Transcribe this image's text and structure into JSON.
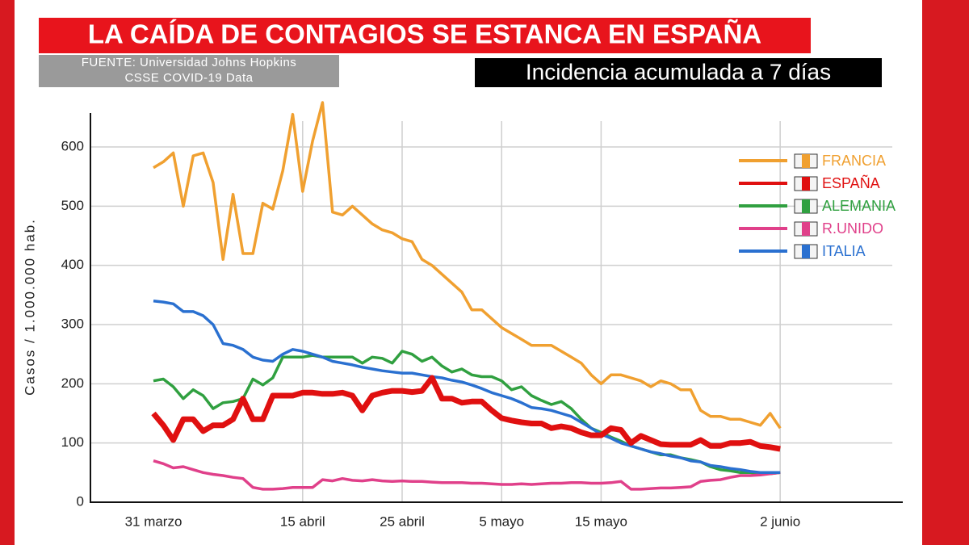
{
  "chart_data": {
    "type": "line",
    "title": "LA CAÍDA DE CONTAGIOS SE ESTANCA EN ESPAÑA",
    "source": [
      "FUENTE: Universidad Johns Hopkins",
      "CSSE COVID-19 Data"
    ],
    "subtitle": "Incidencia acumulada a 7 días",
    "ylabel": "Casos / 1.000.000 hab.",
    "categories": [
      "31 marzo",
      null,
      null,
      null,
      null,
      null,
      null,
      null,
      null,
      null,
      null,
      null,
      null,
      null,
      null,
      "15 abril",
      null,
      null,
      null,
      null,
      null,
      null,
      null,
      null,
      null,
      "25 abril",
      null,
      null,
      null,
      null,
      null,
      null,
      null,
      null,
      null,
      "5 mayo",
      null,
      null,
      null,
      null,
      null,
      null,
      null,
      null,
      null,
      "15 mayo",
      null,
      null,
      null,
      null,
      null,
      null,
      null,
      null,
      null,
      null,
      null,
      null,
      null,
      null,
      null,
      null,
      null,
      "2 junio"
    ],
    "series": [
      {
        "name": "FRANCIA",
        "color": "#f0a030",
        "values": [
          565,
          575,
          590,
          500,
          585,
          590,
          540,
          410,
          520,
          420,
          420,
          505,
          495,
          560,
          655,
          525,
          610,
          675,
          490,
          485,
          500,
          485,
          470,
          460,
          455,
          445,
          440,
          410,
          400,
          385,
          370,
          355,
          325,
          325,
          310,
          295,
          285,
          275,
          265,
          265,
          265,
          255,
          245,
          235,
          215,
          200,
          215,
          215,
          210,
          205,
          195,
          205,
          200,
          190,
          190,
          155,
          145,
          145,
          140,
          140,
          135,
          130,
          150,
          125
        ]
      },
      {
        "name": "ESPAÑA",
        "color": "#e01010",
        "values": [
          150,
          130,
          105,
          140,
          140,
          120,
          130,
          130,
          140,
          175,
          140,
          140,
          180,
          180,
          180,
          185,
          185,
          183,
          183,
          185,
          180,
          155,
          180,
          185,
          188,
          188,
          186,
          188,
          210,
          175,
          175,
          168,
          170,
          170,
          155,
          142,
          138,
          135,
          133,
          133,
          125,
          128,
          125,
          118,
          113,
          113,
          125,
          122,
          100,
          112,
          105,
          98,
          97,
          97,
          97,
          105,
          95,
          95,
          100,
          100,
          102,
          95,
          93,
          90
        ]
      },
      {
        "name": "ALEMANIA",
        "color": "#30a040",
        "values": [
          205,
          208,
          195,
          175,
          190,
          180,
          158,
          168,
          170,
          175,
          208,
          198,
          210,
          245,
          245,
          245,
          248,
          245,
          245,
          245,
          245,
          235,
          245,
          243,
          235,
          255,
          250,
          238,
          245,
          230,
          220,
          225,
          215,
          212,
          212,
          205,
          190,
          195,
          180,
          172,
          165,
          170,
          158,
          140,
          125,
          118,
          110,
          103,
          95,
          90,
          85,
          80,
          80,
          75,
          72,
          68,
          60,
          55,
          53,
          50,
          50,
          48,
          48,
          50
        ]
      },
      {
        "name": "R.UNIDO",
        "color": "#e0408a",
        "values": [
          70,
          65,
          58,
          60,
          55,
          50,
          47,
          45,
          42,
          40,
          25,
          22,
          22,
          23,
          25,
          25,
          25,
          38,
          36,
          40,
          37,
          36,
          38,
          36,
          35,
          36,
          35,
          35,
          34,
          33,
          33,
          33,
          32,
          32,
          31,
          30,
          30,
          31,
          30,
          31,
          32,
          32,
          33,
          33,
          32,
          32,
          33,
          35,
          22,
          22,
          23,
          24,
          24,
          25,
          26,
          35,
          37,
          38,
          42,
          45,
          45,
          46,
          48,
          50
        ]
      },
      {
        "name": "ITALIA",
        "color": "#2a70d0",
        "values": [
          340,
          338,
          335,
          322,
          322,
          315,
          300,
          268,
          265,
          258,
          245,
          240,
          238,
          250,
          258,
          255,
          250,
          245,
          238,
          235,
          232,
          228,
          225,
          222,
          220,
          218,
          218,
          215,
          212,
          210,
          206,
          203,
          198,
          192,
          185,
          180,
          175,
          168,
          160,
          158,
          155,
          150,
          145,
          135,
          125,
          115,
          108,
          100,
          95,
          90,
          85,
          82,
          78,
          75,
          70,
          68,
          62,
          60,
          57,
          55,
          52,
          50,
          50,
          50
        ]
      }
    ],
    "ylim": [
      0,
      650
    ],
    "yticks": [
      0,
      100,
      200,
      300,
      400,
      500,
      600
    ],
    "grid": true,
    "legend": "upper right"
  }
}
